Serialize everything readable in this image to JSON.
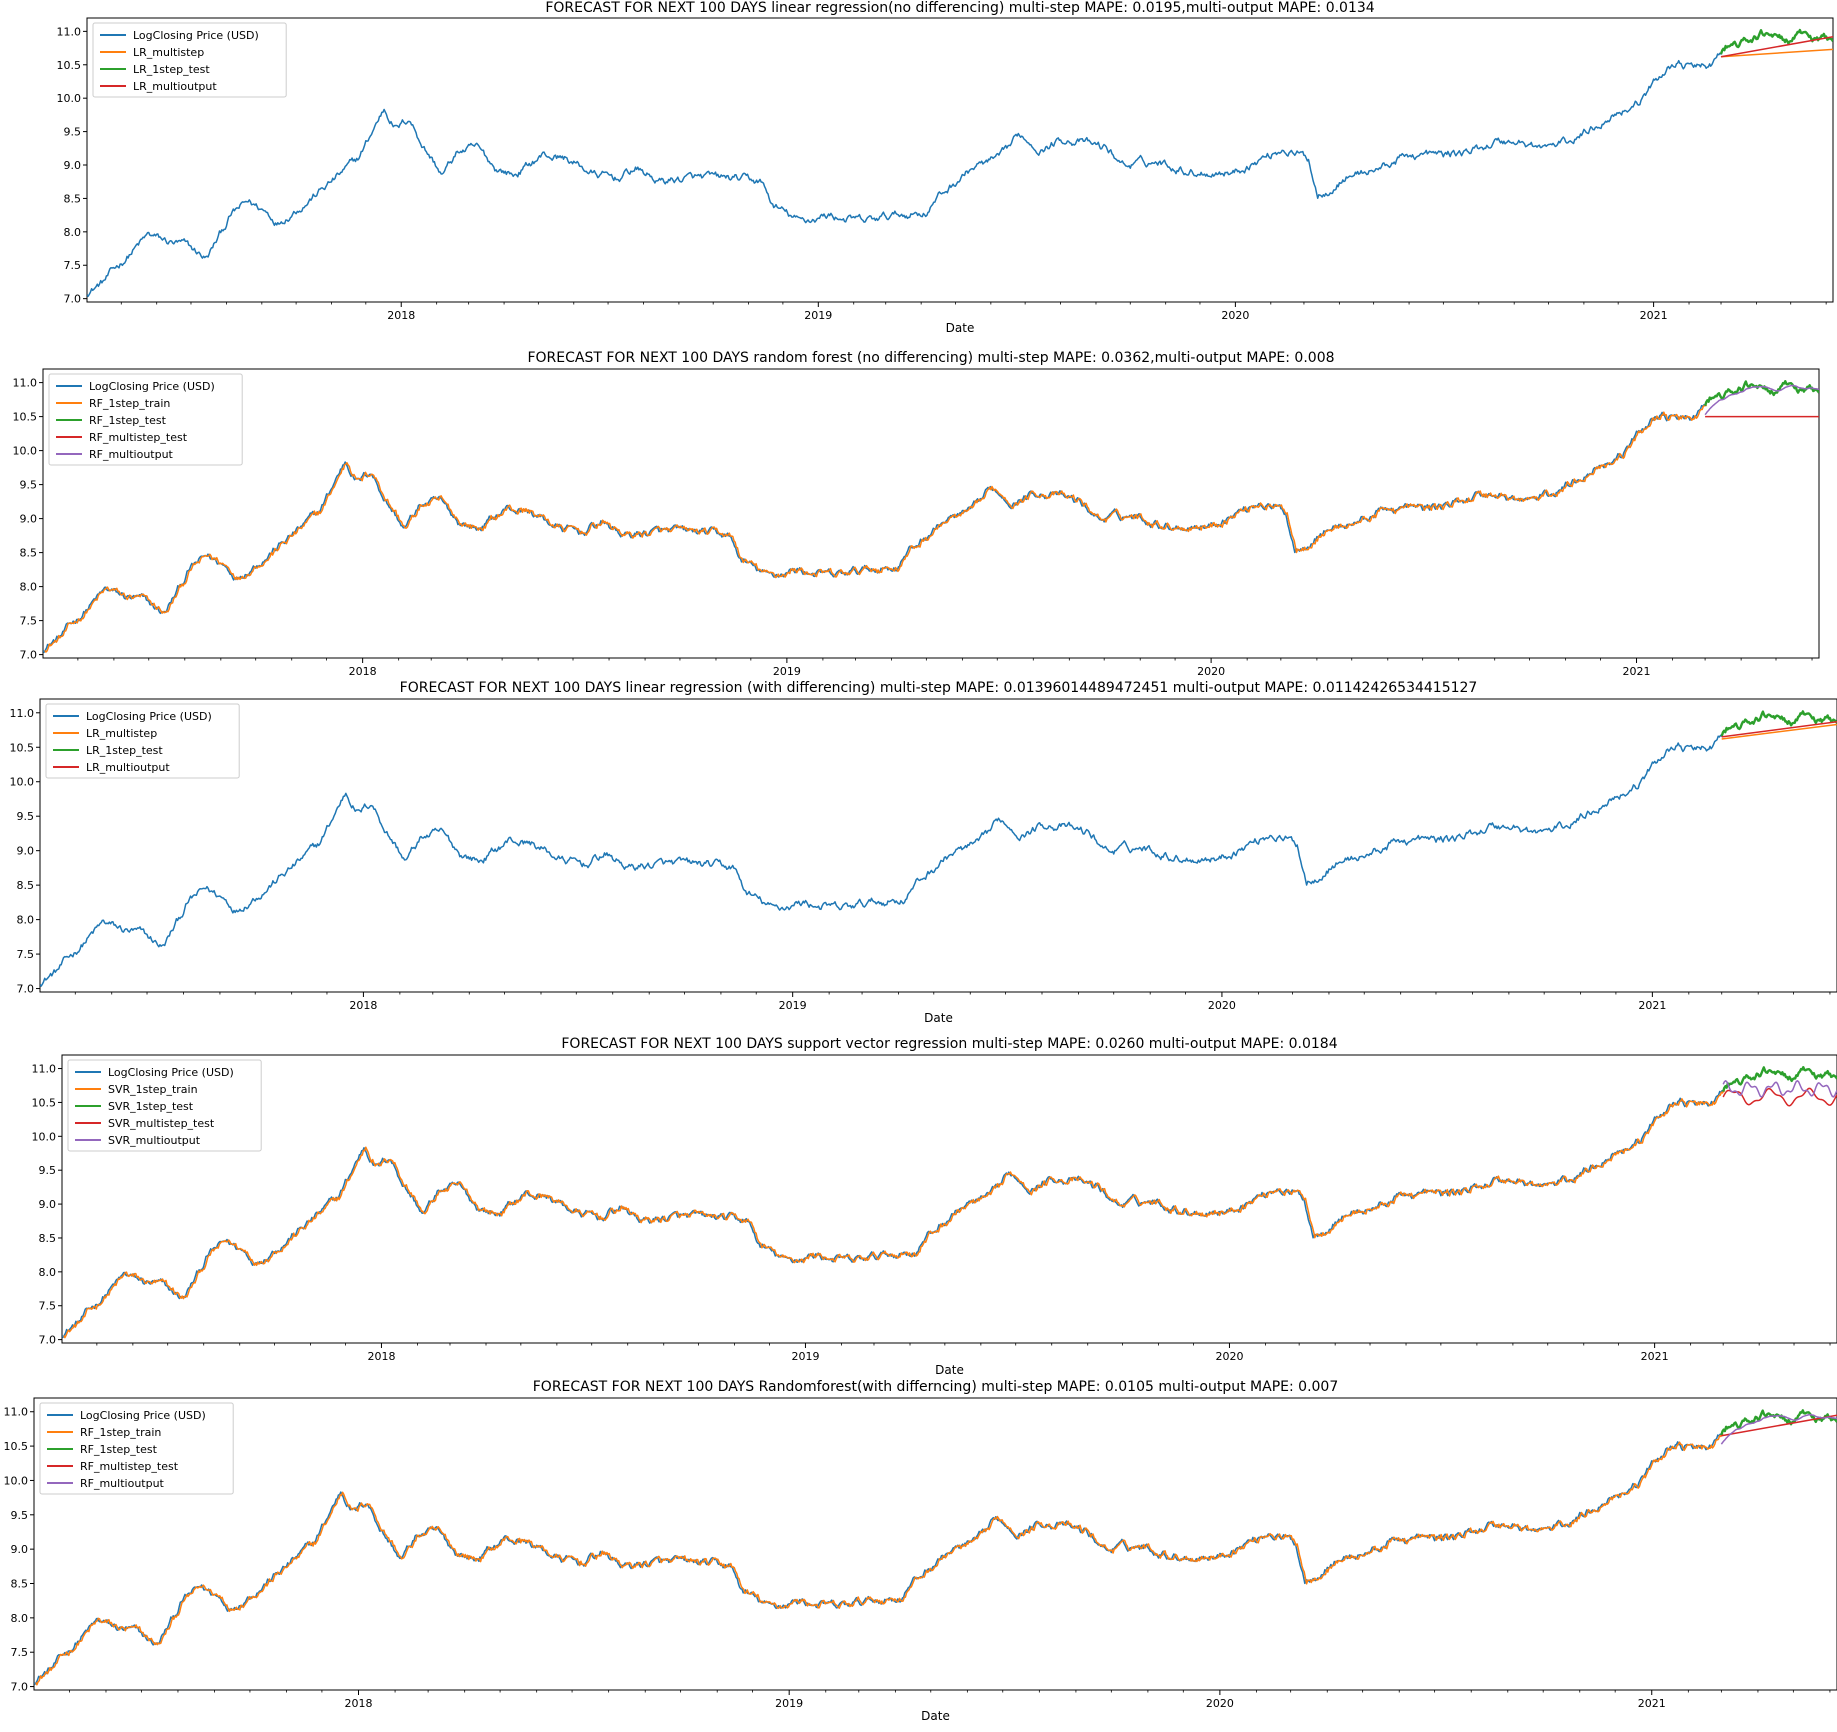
{
  "chart_data": [
    {
      "type": "line",
      "title": "FORECAST FOR NEXT 100 DAYS linear regression(no differencing) multi-step MAPE: 0.0195,multi-output MAPE: 0.0134",
      "xlabel": "Date",
      "ylabel": "",
      "xlim": [
        "2017-04-01",
        "2021-06-07"
      ],
      "ylim": [
        6.95,
        11.2
      ],
      "yticks": [
        "7.0",
        "7.5",
        "8.0",
        "8.5",
        "9.0",
        "9.5",
        "10.0",
        "10.5",
        "11.0"
      ],
      "xticks": [
        "2018",
        "2019",
        "2020",
        "2021"
      ],
      "legend_position": "top-left",
      "series": [
        {
          "name": "LogClosing Price (USD)",
          "color": "#1f77b4",
          "role": "price",
          "x": [
            "2017-04-01",
            "2021-06-07"
          ]
        },
        {
          "name": "LR_multistep",
          "color": "#ff7f0e",
          "role": "multistep",
          "x": [
            "2021-03-01",
            "2021-06-07"
          ],
          "y": [
            10.62,
            10.73
          ]
        },
        {
          "name": "LR_1step_test",
          "color": "#2ca02c",
          "role": "test",
          "x": [
            "2021-03-01",
            "2021-06-07"
          ]
        },
        {
          "name": "LR_multioutput",
          "color": "#d62728",
          "role": "multioutput",
          "x": [
            "2021-03-01",
            "2021-06-07"
          ],
          "y": [
            10.62,
            10.92
          ]
        }
      ]
    },
    {
      "type": "line",
      "title": "FORECAST FOR NEXT 100 DAYS  random forest (no differencing) multi-step MAPE: 0.0362,multi-output MAPE: 0.008",
      "xlabel": "",
      "ylabel": "",
      "xlim": [
        "2017-04-01",
        "2021-06-07"
      ],
      "ylim": [
        6.95,
        11.2
      ],
      "yticks": [
        "7.0",
        "7.5",
        "8.0",
        "8.5",
        "9.0",
        "9.5",
        "10.0",
        "10.5",
        "11.0"
      ],
      "xticks": [
        "2018",
        "2019",
        "2020",
        "2021"
      ],
      "legend_position": "top-left",
      "series": [
        {
          "name": "LogClosing Price (USD)",
          "color": "#1f77b4",
          "role": "price",
          "x": [
            "2017-04-01",
            "2021-06-07"
          ]
        },
        {
          "name": "RF_1step_train",
          "color": "#ff7f0e",
          "role": "train",
          "x": [
            "2017-04-01",
            "2021-03-01"
          ]
        },
        {
          "name": "RF_1step_test",
          "color": "#2ca02c",
          "role": "test",
          "x": [
            "2021-03-01",
            "2021-06-07"
          ]
        },
        {
          "name": "RF_multistep_test",
          "color": "#d62728",
          "role": "multistep",
          "x": [
            "2021-03-01",
            "2021-06-07"
          ],
          "y": [
            10.5,
            10.5
          ]
        },
        {
          "name": "RF_multioutput",
          "color": "#9467bd",
          "role": "multioutput_smooth",
          "x": [
            "2021-03-01",
            "2021-06-07"
          ]
        }
      ]
    },
    {
      "type": "line",
      "title": "FORECAST FOR NEXT 100 DAYS linear regression (with differencing) multi-step MAPE: 0.01396014489472451 multi-output MAPE: 0.01142426534415127",
      "xlabel": "Date",
      "ylabel": "",
      "xlim": [
        "2017-04-01",
        "2021-06-07"
      ],
      "ylim": [
        6.95,
        11.2
      ],
      "yticks": [
        "7.0",
        "7.5",
        "8.0",
        "8.5",
        "9.0",
        "9.5",
        "10.0",
        "10.5",
        "11.0"
      ],
      "xticks": [
        "2018",
        "2019",
        "2020",
        "2021"
      ],
      "legend_position": "top-left",
      "series": [
        {
          "name": "LogClosing Price (USD)",
          "color": "#1f77b4",
          "role": "price",
          "x": [
            "2017-04-01",
            "2021-06-07"
          ]
        },
        {
          "name": "LR_multistep",
          "color": "#ff7f0e",
          "role": "multistep",
          "x": [
            "2021-03-01",
            "2021-06-07"
          ],
          "y": [
            10.62,
            10.83
          ]
        },
        {
          "name": "LR_1step_test",
          "color": "#2ca02c",
          "role": "test",
          "x": [
            "2021-03-01",
            "2021-06-07"
          ]
        },
        {
          "name": "LR_multioutput",
          "color": "#d62728",
          "role": "multioutput",
          "x": [
            "2021-03-01",
            "2021-06-07"
          ],
          "y": [
            10.65,
            10.87
          ]
        }
      ]
    },
    {
      "type": "line",
      "title": "FORECAST FOR NEXT 100 DAYS support vector regression multi-step MAPE: 0.0260 multi-output MAPE: 0.0184",
      "xlabel": "Date",
      "ylabel": "",
      "xlim": [
        "2017-04-01",
        "2021-06-07"
      ],
      "ylim": [
        6.95,
        11.2
      ],
      "yticks": [
        "7.0",
        "7.5",
        "8.0",
        "8.5",
        "9.0",
        "9.5",
        "10.0",
        "10.5",
        "11.0"
      ],
      "xticks": [
        "2018",
        "2019",
        "2020",
        "2021"
      ],
      "legend_position": "top-left",
      "series": [
        {
          "name": "LogClosing Price (USD)",
          "color": "#1f77b4",
          "role": "price",
          "x": [
            "2017-04-01",
            "2021-06-07"
          ]
        },
        {
          "name": "SVR_1step_train",
          "color": "#ff7f0e",
          "role": "train",
          "x": [
            "2017-04-01",
            "2021-03-01"
          ]
        },
        {
          "name": "SVR_1step_test",
          "color": "#2ca02c",
          "role": "test",
          "x": [
            "2021-03-01",
            "2021-06-07"
          ]
        },
        {
          "name": "SVR_multistep_test",
          "color": "#d62728",
          "role": "multistep_wave",
          "x": [
            "2021-03-01",
            "2021-06-07"
          ]
        },
        {
          "name": "SVR_multioutput",
          "color": "#9467bd",
          "role": "multioutput_wave",
          "x": [
            "2021-03-01",
            "2021-06-07"
          ]
        }
      ]
    },
    {
      "type": "line",
      "title": "FORECAST FOR NEXT 100 DAYS Randomforest(with differncing) multi-step MAPE: 0.0105 multi-output MAPE: 0.007",
      "xlabel": "Date",
      "ylabel": "",
      "xlim": [
        "2017-04-01",
        "2021-06-07"
      ],
      "ylim": [
        6.95,
        11.2
      ],
      "yticks": [
        "7.0",
        "7.5",
        "8.0",
        "8.5",
        "9.0",
        "9.5",
        "10.0",
        "10.5",
        "11.0"
      ],
      "xticks": [
        "2018",
        "2019",
        "2020",
        "2021"
      ],
      "legend_position": "top-left",
      "series": [
        {
          "name": "LogClosing Price (USD)",
          "color": "#1f77b4",
          "role": "price",
          "x": [
            "2017-04-01",
            "2021-06-07"
          ]
        },
        {
          "name": "RF_1step_train",
          "color": "#ff7f0e",
          "role": "train",
          "x": [
            "2017-04-01",
            "2021-03-01"
          ]
        },
        {
          "name": "RF_1step_test",
          "color": "#2ca02c",
          "role": "test",
          "x": [
            "2021-03-01",
            "2021-06-07"
          ]
        },
        {
          "name": "RF_multistep_test",
          "color": "#d62728",
          "role": "multistep",
          "x": [
            "2021-03-01",
            "2021-06-07"
          ],
          "y": [
            10.65,
            10.95
          ]
        },
        {
          "name": "RF_multioutput",
          "color": "#9467bd",
          "role": "multioutput_smooth",
          "x": [
            "2021-03-01",
            "2021-06-07"
          ]
        }
      ]
    }
  ],
  "price_anchors": [
    [
      "2017-04-01",
      7.1
    ],
    [
      "2017-04-15",
      7.25
    ],
    [
      "2017-05-10",
      7.7
    ],
    [
      "2017-05-25",
      7.95
    ],
    [
      "2017-06-10",
      7.85
    ],
    [
      "2017-06-25",
      7.8
    ],
    [
      "2017-07-15",
      7.6
    ],
    [
      "2017-08-05",
      8.25
    ],
    [
      "2017-08-20",
      8.45
    ],
    [
      "2017-09-05",
      8.3
    ],
    [
      "2017-09-15",
      8.15
    ],
    [
      "2017-10-10",
      8.45
    ],
    [
      "2017-11-01",
      8.75
    ],
    [
      "2017-11-25",
      9.1
    ],
    [
      "2017-12-17",
      9.85
    ],
    [
      "2017-12-28",
      9.55
    ],
    [
      "2018-01-08",
      9.7
    ],
    [
      "2018-01-20",
      9.3
    ],
    [
      "2018-02-06",
      8.85
    ],
    [
      "2018-02-20",
      9.2
    ],
    [
      "2018-03-08",
      9.25
    ],
    [
      "2018-03-25",
      8.95
    ],
    [
      "2018-04-10",
      8.85
    ],
    [
      "2018-05-05",
      9.15
    ],
    [
      "2018-05-25",
      9.1
    ],
    [
      "2018-06-20",
      8.85
    ],
    [
      "2018-07-10",
      8.8
    ],
    [
      "2018-07-25",
      8.95
    ],
    [
      "2018-08-15",
      8.75
    ],
    [
      "2018-09-05",
      8.8
    ],
    [
      "2018-10-15",
      8.8
    ],
    [
      "2018-11-12",
      8.75
    ],
    [
      "2018-11-22",
      8.4
    ],
    [
      "2018-12-15",
      8.15
    ],
    [
      "2019-01-10",
      8.25
    ],
    [
      "2019-02-10",
      8.15
    ],
    [
      "2019-03-10",
      8.25
    ],
    [
      "2019-04-05",
      8.3
    ],
    [
      "2019-04-15",
      8.5
    ],
    [
      "2019-05-15",
      8.95
    ],
    [
      "2019-06-10",
      9.1
    ],
    [
      "2019-06-26",
      9.45
    ],
    [
      "2019-07-15",
      9.25
    ],
    [
      "2019-08-05",
      9.4
    ],
    [
      "2019-09-10",
      9.25
    ],
    [
      "2019-09-26",
      9.0
    ],
    [
      "2019-10-25",
      9.05
    ],
    [
      "2019-11-25",
      8.9
    ],
    [
      "2019-12-31",
      8.9
    ],
    [
      "2020-02-12",
      9.25
    ],
    [
      "2020-03-05",
      9.1
    ],
    [
      "2020-03-13",
      8.55
    ],
    [
      "2020-04-10",
      8.85
    ],
    [
      "2020-05-05",
      8.95
    ],
    [
      "2020-06-01",
      9.15
    ],
    [
      "2020-07-01",
      9.15
    ],
    [
      "2020-07-25",
      9.2
    ],
    [
      "2020-08-15",
      9.35
    ],
    [
      "2020-09-05",
      9.35
    ],
    [
      "2020-09-25",
      9.25
    ],
    [
      "2020-10-20",
      9.35
    ],
    [
      "2020-11-25",
      9.75
    ],
    [
      "2020-12-20",
      9.95
    ],
    [
      "2021-01-10",
      10.4
    ],
    [
      "2021-01-20",
      10.55
    ],
    [
      "2021-02-05",
      10.45
    ],
    [
      "2021-02-20",
      10.5
    ],
    [
      "2021-03-05",
      10.75
    ],
    [
      "2021-03-25",
      10.85
    ],
    [
      "2021-04-14",
      11.0
    ],
    [
      "2021-04-25",
      10.85
    ],
    [
      "2021-05-15",
      10.95
    ],
    [
      "2021-05-25",
      10.85
    ],
    [
      "2021-06-07",
      10.9
    ]
  ]
}
